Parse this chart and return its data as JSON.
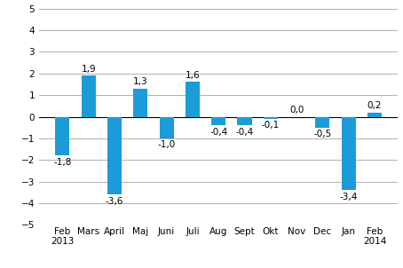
{
  "categories": [
    "Feb",
    "Mars",
    "April",
    "Maj",
    "Juni",
    "Juli",
    "Aug",
    "Sept",
    "Okt",
    "Nov",
    "Dec",
    "Jan",
    "Feb"
  ],
  "values": [
    -1.8,
    1.9,
    -3.6,
    1.3,
    -1.0,
    1.6,
    -0.4,
    -0.4,
    -0.1,
    0.0,
    -0.5,
    -3.4,
    0.2
  ],
  "bar_color": "#1b9cd8",
  "ylim": [
    -5,
    5
  ],
  "yticks": [
    -5,
    -4,
    -3,
    -2,
    -1,
    0,
    1,
    2,
    3,
    4,
    5
  ],
  "year_2013_idx": 0,
  "year_2014_idx": 12,
  "year_2013": "2013",
  "year_2014": "2014",
  "tick_fontsize": 7.5,
  "year_fontsize": 7.5,
  "value_fontsize": 7.5,
  "background_color": "#ffffff",
  "grid_color": "#b0b0b0",
  "bar_width": 0.55
}
